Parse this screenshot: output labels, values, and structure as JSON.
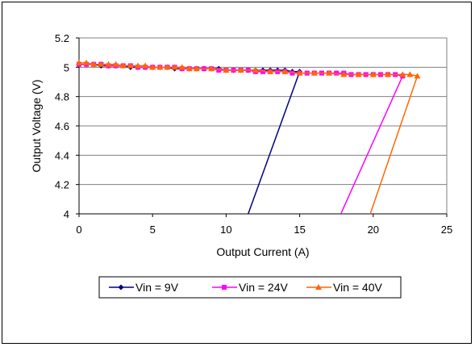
{
  "chart_data": {
    "type": "line",
    "xlabel": "Output Current (A)",
    "ylabel": "Output Voltage (V)",
    "xlim": [
      0,
      25
    ],
    "ylim": [
      4,
      5.2
    ],
    "xticks": [
      "0",
      "5",
      "10",
      "15",
      "20",
      "25"
    ],
    "yticks": [
      "4",
      "4.2",
      "4.4",
      "4.6",
      "4.8",
      "5",
      "5.2"
    ],
    "grid": "horizontal",
    "legend_position": "bottom",
    "series": [
      {
        "name": "Vin = 9V",
        "color": "#000080",
        "marker": "diamond",
        "x": [
          0,
          0.5,
          1,
          1.5,
          2,
          2.5,
          3,
          3.5,
          4,
          4.5,
          5,
          5.5,
          6,
          6.5,
          7,
          7.5,
          8,
          8.5,
          9,
          9.5,
          10,
          10.5,
          11,
          11.5,
          12,
          12.5,
          13,
          13.5,
          14,
          14.5,
          15,
          11.5
        ],
        "y": [
          5.02,
          5.02,
          5.02,
          5.01,
          5.01,
          5.01,
          5.01,
          5.0,
          5.0,
          5.0,
          5.0,
          5.0,
          5.0,
          4.99,
          4.99,
          4.99,
          4.99,
          4.99,
          4.99,
          4.99,
          4.98,
          4.98,
          4.98,
          4.98,
          4.98,
          4.98,
          4.98,
          4.98,
          4.98,
          4.97,
          4.97,
          4.0
        ]
      },
      {
        "name": "Vin = 24V",
        "color": "#ff00ff",
        "marker": "square",
        "x": [
          0,
          0.5,
          1,
          1.5,
          2,
          2.5,
          3,
          3.5,
          4,
          4.5,
          5,
          5.5,
          6,
          6.5,
          7,
          7.5,
          8,
          8.5,
          9,
          9.5,
          10,
          10.5,
          11,
          11.5,
          12,
          12.5,
          13,
          13.5,
          14,
          14.5,
          15,
          15.5,
          16,
          16.5,
          17,
          17.5,
          18,
          18.5,
          19,
          19.5,
          20,
          20.5,
          21,
          21.5,
          22,
          17.8
        ],
        "y": [
          5.02,
          5.02,
          5.02,
          5.02,
          5.01,
          5.01,
          5.01,
          5.01,
          5.0,
          5.0,
          5.0,
          5.0,
          5.0,
          5.0,
          4.99,
          4.99,
          4.99,
          4.99,
          4.99,
          4.98,
          4.98,
          4.98,
          4.98,
          4.98,
          4.97,
          4.97,
          4.97,
          4.97,
          4.97,
          4.96,
          4.96,
          4.96,
          4.96,
          4.96,
          4.96,
          4.96,
          4.96,
          4.95,
          4.95,
          4.95,
          4.95,
          4.95,
          4.95,
          4.95,
          4.94,
          4.0
        ]
      },
      {
        "name": "Vin = 40V",
        "color": "#ff6600",
        "marker": "triangle",
        "x": [
          0,
          0.5,
          1,
          1.5,
          2,
          2.5,
          3,
          3.5,
          4,
          4.5,
          5,
          5.5,
          6,
          6.5,
          7,
          7.5,
          8,
          9,
          10,
          11,
          12,
          13,
          14,
          15,
          16,
          17,
          18,
          19,
          20,
          21,
          22,
          22.5,
          23,
          19.8
        ],
        "y": [
          5.03,
          5.03,
          5.02,
          5.02,
          5.02,
          5.02,
          5.01,
          5.01,
          5.01,
          5.01,
          5.0,
          5.0,
          5.0,
          5.0,
          5.0,
          4.99,
          4.99,
          4.99,
          4.98,
          4.98,
          4.98,
          4.97,
          4.97,
          4.96,
          4.96,
          4.96,
          4.95,
          4.95,
          4.95,
          4.95,
          4.95,
          4.95,
          4.94,
          4.0
        ]
      }
    ]
  }
}
